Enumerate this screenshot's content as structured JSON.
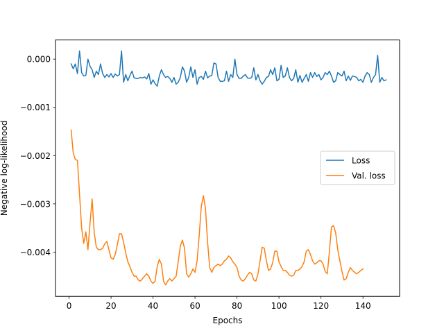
{
  "chart_data": {
    "type": "line",
    "xlabel": "Epochs",
    "ylabel": "Negative log-likelihood",
    "xlim": [
      -6.45,
      157.45
    ],
    "ylim": [
      -0.004918,
      0.000397
    ],
    "x_ticks": [
      0,
      20,
      40,
      60,
      80,
      100,
      120,
      140
    ],
    "x_tick_labels": [
      "0",
      "20",
      "40",
      "60",
      "80",
      "100",
      "120",
      "140"
    ],
    "y_ticks": [
      0.0,
      -0.001,
      -0.002,
      -0.003,
      -0.004
    ],
    "y_tick_labels": [
      "0.000",
      "−0.001",
      "−0.002",
      "−0.003",
      "−0.004"
    ],
    "grid": false,
    "legend_position": "center-right",
    "series": [
      {
        "name": "Loss",
        "color": "#1f77b4",
        "x_start": 1,
        "values": [
          -0.0001,
          -0.0002,
          -0.0001,
          -0.0003,
          0.00017,
          -0.00028,
          -0.00035,
          -0.00034,
          0.0,
          -0.00015,
          -0.00022,
          -0.00038,
          -0.00025,
          -0.00032,
          -0.0001,
          -0.0003,
          -0.00038,
          -0.00032,
          -0.00037,
          -0.0003,
          -0.00038,
          -0.00031,
          -0.00035,
          -0.00032,
          0.00017,
          -0.00048,
          -0.00032,
          -0.00045,
          -0.00034,
          -0.00025,
          -0.00039,
          -0.0004,
          -0.0004,
          -0.00038,
          -0.00039,
          -0.00037,
          -0.00041,
          -0.0003,
          -0.00052,
          -0.00043,
          -0.00051,
          -0.00056,
          -0.00035,
          -0.00022,
          -0.00032,
          -0.00038,
          -0.00036,
          -0.0004,
          -0.00048,
          -0.00038,
          -0.00052,
          -0.00048,
          -0.00038,
          -0.00016,
          -0.00025,
          -0.00048,
          -0.00038,
          -0.00016,
          -0.00038,
          -0.00022,
          -0.00052,
          -0.00038,
          -0.00036,
          -0.00042,
          -0.00025,
          -0.00039,
          -0.00035,
          -0.00034,
          -8e-05,
          -0.0001,
          -0.00038,
          -0.00046,
          -0.00046,
          -0.00045,
          -0.00025,
          -0.00046,
          -0.00032,
          -0.00038,
          -0.0,
          -0.00032,
          -0.0004,
          -0.0004,
          -0.00035,
          -0.00032,
          -0.00039,
          -0.0004,
          -0.00038,
          -0.00018,
          -0.00043,
          -0.00032,
          -0.00045,
          -0.00052,
          -0.00046,
          -0.00038,
          -0.00036,
          -0.00022,
          -0.00032,
          -0.00018,
          -0.00045,
          -0.00042,
          -0.00013,
          -0.00038,
          -0.00035,
          -0.00018,
          -0.00038,
          -0.00045,
          -0.0004,
          -0.00022,
          -0.00048,
          -0.00034,
          -0.00048,
          -0.0004,
          -0.00032,
          -0.00046,
          -0.00028,
          -0.00038,
          -0.00028,
          -0.00036,
          -0.00032,
          -0.00043,
          -0.00038,
          -0.00028,
          -0.00032,
          -0.00025,
          -0.00035,
          -0.00048,
          -0.00045,
          -0.00028,
          -0.00032,
          -0.00035,
          -0.00025,
          -0.00045,
          -0.00035,
          -0.00044,
          -0.00035,
          -0.00036,
          -0.00038,
          -0.00045,
          -0.00042,
          -0.00048,
          -0.00035,
          -0.00028,
          -0.00032,
          -0.00048,
          -0.00038,
          -0.00032,
          8e-05,
          -0.00048,
          -0.00038,
          -0.00045,
          -0.00043
        ]
      },
      {
        "name": "Val. loss",
        "color": "#ff7f0e",
        "x_start": 1,
        "values": [
          -0.00147,
          -0.00195,
          -0.00208,
          -0.0021,
          -0.0028,
          -0.0035,
          -0.00382,
          -0.00358,
          -0.00395,
          -0.0034,
          -0.0029,
          -0.0036,
          -0.0039,
          -0.00395,
          -0.00395,
          -0.00392,
          -0.00383,
          -0.00378,
          -0.00395,
          -0.00412,
          -0.00415,
          -0.00405,
          -0.00385,
          -0.00362,
          -0.00362,
          -0.0038,
          -0.00402,
          -0.0042,
          -0.0043,
          -0.00442,
          -0.0045,
          -0.0045,
          -0.00458,
          -0.0046,
          -0.00455,
          -0.0045,
          -0.00445,
          -0.0045,
          -0.0046,
          -0.00465,
          -0.0046,
          -0.0043,
          -0.00415,
          -0.00425,
          -0.0046,
          -0.00468,
          -0.0046,
          -0.00455,
          -0.0046,
          -0.00455,
          -0.0045,
          -0.0042,
          -0.00388,
          -0.00375,
          -0.00392,
          -0.00445,
          -0.00452,
          -0.00445,
          -0.00435,
          -0.00442,
          -0.00418,
          -0.00365,
          -0.00305,
          -0.00283,
          -0.0031,
          -0.0038,
          -0.00432,
          -0.00442,
          -0.00432,
          -0.00428,
          -0.00425,
          -0.00428,
          -0.00425,
          -0.00418,
          -0.00415,
          -0.00408,
          -0.00412,
          -0.0042,
          -0.00425,
          -0.00432,
          -0.0045,
          -0.00458,
          -0.0046,
          -0.00455,
          -0.00448,
          -0.00442,
          -0.00445,
          -0.00458,
          -0.0046,
          -0.00445,
          -0.00418,
          -0.0039,
          -0.00392,
          -0.00418,
          -0.00438,
          -0.00435,
          -0.00422,
          -0.00398,
          -0.00398,
          -0.0042,
          -0.0043,
          -0.00438,
          -0.00438,
          -0.00442,
          -0.00448,
          -0.0045,
          -0.00448,
          -0.00438,
          -0.00438,
          -0.00435,
          -0.0043,
          -0.0042,
          -0.00398,
          -0.00395,
          -0.00405,
          -0.00418,
          -0.00425,
          -0.00422,
          -0.00418,
          -0.00418,
          -0.00425,
          -0.0044,
          -0.00445,
          -0.004,
          -0.00348,
          -0.00345,
          -0.0036,
          -0.00395,
          -0.00418,
          -0.0044,
          -0.00458,
          -0.00455,
          -0.00442,
          -0.00432,
          -0.00438,
          -0.00442,
          -0.00445,
          -0.00442,
          -0.00438,
          -0.00435
        ]
      }
    ]
  }
}
